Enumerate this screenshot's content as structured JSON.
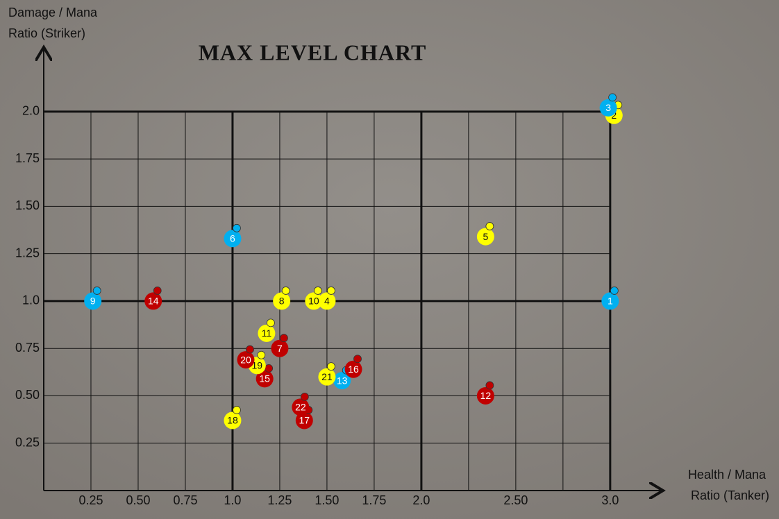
{
  "chart_data": {
    "type": "scatter",
    "title": "MAX LEVEL CHART",
    "y_label": [
      "Damage / Mana",
      "Ratio (Striker)"
    ],
    "x_label": [
      "Health / Mana",
      "Ratio (Tanker)"
    ],
    "x": [
      3.0,
      3.02,
      2.99,
      1.5,
      2.34,
      1.0,
      1.25,
      1.26,
      0.26,
      1.43,
      1.18,
      2.34,
      1.58,
      0.58,
      1.17,
      1.64,
      1.38,
      1.0,
      1.13,
      1.07,
      1.5,
      1.36
    ],
    "values": [
      1.0,
      1.98,
      2.02,
      1.0,
      1.34,
      1.33,
      0.75,
      1.0,
      1.0,
      1.0,
      0.83,
      0.5,
      0.58,
      1.0,
      0.59,
      0.64,
      0.37,
      0.37,
      0.66,
      0.69,
      0.6,
      0.44
    ],
    "point_labels": [
      "1",
      "2",
      "3",
      "4",
      "5",
      "6",
      "7",
      "8",
      "9",
      "10",
      "11",
      "12",
      "13",
      "14",
      "15",
      "16",
      "17",
      "18",
      "19",
      "20",
      "21",
      "22"
    ],
    "colors": [
      "#00b0f0",
      "#ffff00",
      "#00b0f0",
      "#ffff00",
      "#ffff00",
      "#00b0f0",
      "#c00000",
      "#ffff00",
      "#00b0f0",
      "#ffff00",
      "#ffff00",
      "#c00000",
      "#00b0f0",
      "#c00000",
      "#c00000",
      "#c00000",
      "#c00000",
      "#ffff00",
      "#ffff00",
      "#c00000",
      "#ffff00",
      "#c00000"
    ],
    "xlim": [
      0,
      3.28
    ],
    "ylim": [
      0,
      2.34
    ],
    "xticks": [
      0.25,
      {
        "value": 0.5,
        "label": "0.50"
      },
      0.75,
      {
        "value": 1,
        "label": "1.0"
      },
      1.25,
      {
        "value": 1.5,
        "label": "1.50"
      },
      1.75,
      {
        "value": 2,
        "label": "2.0"
      },
      {
        "value": 2.25,
        "label": null
      },
      {
        "value": 2.5,
        "label": "2.50"
      },
      {
        "value": 2.75,
        "label": null
      },
      {
        "value": 3,
        "label": "3.0"
      }
    ],
    "yticks": [
      0.25,
      {
        "value": 0.5,
        "label": "0.50"
      },
      0.75,
      {
        "value": 1,
        "label": "1.0"
      },
      1.25,
      {
        "value": 1.5,
        "label": "1.50"
      },
      1.75,
      {
        "value": 2,
        "label": "2.0"
      }
    ],
    "grid": true
  }
}
